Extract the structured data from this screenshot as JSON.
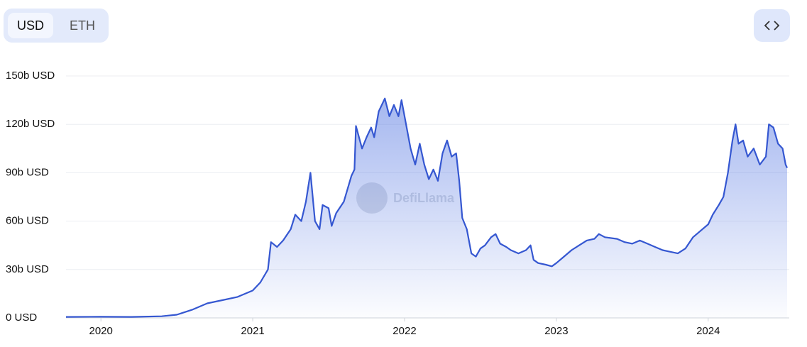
{
  "toggle": {
    "options": [
      "USD",
      "ETH"
    ]
  },
  "watermark": "DefiLlama",
  "chart_data": {
    "type": "area",
    "color": "#3557d1",
    "x": [
      2019.77,
      2020.0,
      2020.2,
      2020.4,
      2020.5,
      2020.6,
      2020.7,
      2020.8,
      2020.9,
      2020.95,
      2021.0,
      2021.05,
      2021.1,
      2021.12,
      2021.16,
      2021.2,
      2021.25,
      2021.28,
      2021.32,
      2021.35,
      2021.38,
      2021.41,
      2021.44,
      2021.46,
      2021.5,
      2021.52,
      2021.55,
      2021.6,
      2021.65,
      2021.67,
      2021.68,
      2021.72,
      2021.75,
      2021.78,
      2021.8,
      2021.83,
      2021.87,
      2021.9,
      2021.93,
      2021.96,
      2021.98,
      2022.01,
      2022.04,
      2022.07,
      2022.1,
      2022.13,
      2022.16,
      2022.19,
      2022.22,
      2022.25,
      2022.28,
      2022.31,
      2022.34,
      2022.36,
      2022.38,
      2022.41,
      2022.44,
      2022.47,
      2022.5,
      2022.53,
      2022.57,
      2022.6,
      2022.63,
      2022.67,
      2022.7,
      2022.75,
      2022.8,
      2022.83,
      2022.85,
      2022.88,
      2022.93,
      2022.97,
      2023.0,
      2023.05,
      2023.1,
      2023.15,
      2023.2,
      2023.25,
      2023.28,
      2023.32,
      2023.4,
      2023.45,
      2023.5,
      2023.55,
      2023.6,
      2023.65,
      2023.7,
      2023.75,
      2023.8,
      2023.85,
      2023.9,
      2023.95,
      2024.0,
      2024.03,
      2024.07,
      2024.1,
      2024.13,
      2024.16,
      2024.18,
      2024.2,
      2024.23,
      2024.26,
      2024.3,
      2024.34,
      2024.38,
      2024.4,
      2024.43,
      2024.46,
      2024.49,
      2024.51,
      2024.52
    ],
    "values": [
      0.6,
      0.7,
      0.6,
      1.0,
      2.0,
      5,
      9,
      11,
      13,
      15,
      17,
      22,
      30,
      47,
      44,
      48,
      55,
      64,
      60,
      72,
      90,
      60,
      55,
      70,
      68,
      57,
      65,
      72,
      88,
      92,
      119,
      105,
      112,
      118,
      112,
      128,
      136,
      125,
      132,
      125,
      135,
      120,
      105,
      95,
      108,
      95,
      86,
      92,
      85,
      102,
      110,
      100,
      102,
      85,
      62,
      55,
      40,
      38,
      43,
      45,
      50,
      52,
      46,
      44,
      42,
      40,
      42,
      45,
      36,
      34,
      33,
      32,
      34,
      38,
      42,
      45,
      48,
      49,
      52,
      50,
      49,
      47,
      46,
      48,
      46,
      44,
      42,
      41,
      40,
      43,
      50,
      54,
      58,
      64,
      70,
      75,
      90,
      110,
      120,
      108,
      110,
      100,
      105,
      95,
      100,
      120,
      118,
      108,
      105,
      95,
      93
    ],
    "xlim": [
      2019.77,
      2024.52
    ],
    "xticks": [
      2020,
      2021,
      2022,
      2023,
      2024
    ],
    "ylim": [
      0,
      150
    ],
    "yticks": [
      {
        "value": 0,
        "label": "0 USD"
      },
      {
        "value": 30,
        "label": "30b USD"
      },
      {
        "value": 60,
        "label": "60b USD"
      },
      {
        "value": 90,
        "label": "90b USD"
      },
      {
        "value": 120,
        "label": "120b USD"
      },
      {
        "value": 150,
        "label": "150b USD"
      }
    ],
    "grid": true
  }
}
